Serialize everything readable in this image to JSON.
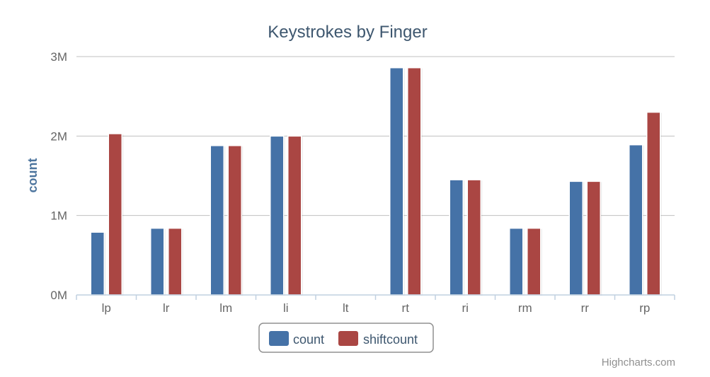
{
  "chart_data": {
    "type": "bar",
    "title": "Keystrokes by Finger",
    "xlabel": "",
    "ylabel": "count",
    "categories": [
      "lp",
      "lr",
      "lm",
      "li",
      "lt",
      "rt",
      "ri",
      "rm",
      "rr",
      "rp"
    ],
    "series": [
      {
        "name": "count",
        "color": "#4572a7",
        "values": [
          790000,
          840000,
          1880000,
          2000000,
          0,
          2860000,
          1450000,
          840000,
          1430000,
          1890000
        ]
      },
      {
        "name": "shiftcount",
        "color": "#aa4643",
        "values": [
          2030000,
          840000,
          1880000,
          2000000,
          0,
          2860000,
          1450000,
          840000,
          1430000,
          2300000
        ]
      }
    ],
    "ylim": [
      0,
      3000000
    ],
    "yticks": [
      {
        "value": 0,
        "label": "0M"
      },
      {
        "value": 1000000,
        "label": "1M"
      },
      {
        "value": 2000000,
        "label": "2M"
      },
      {
        "value": 3000000,
        "label": "3M"
      }
    ],
    "grid": true,
    "legend_position": "bottom-center"
  },
  "credits": "Highcharts.com"
}
